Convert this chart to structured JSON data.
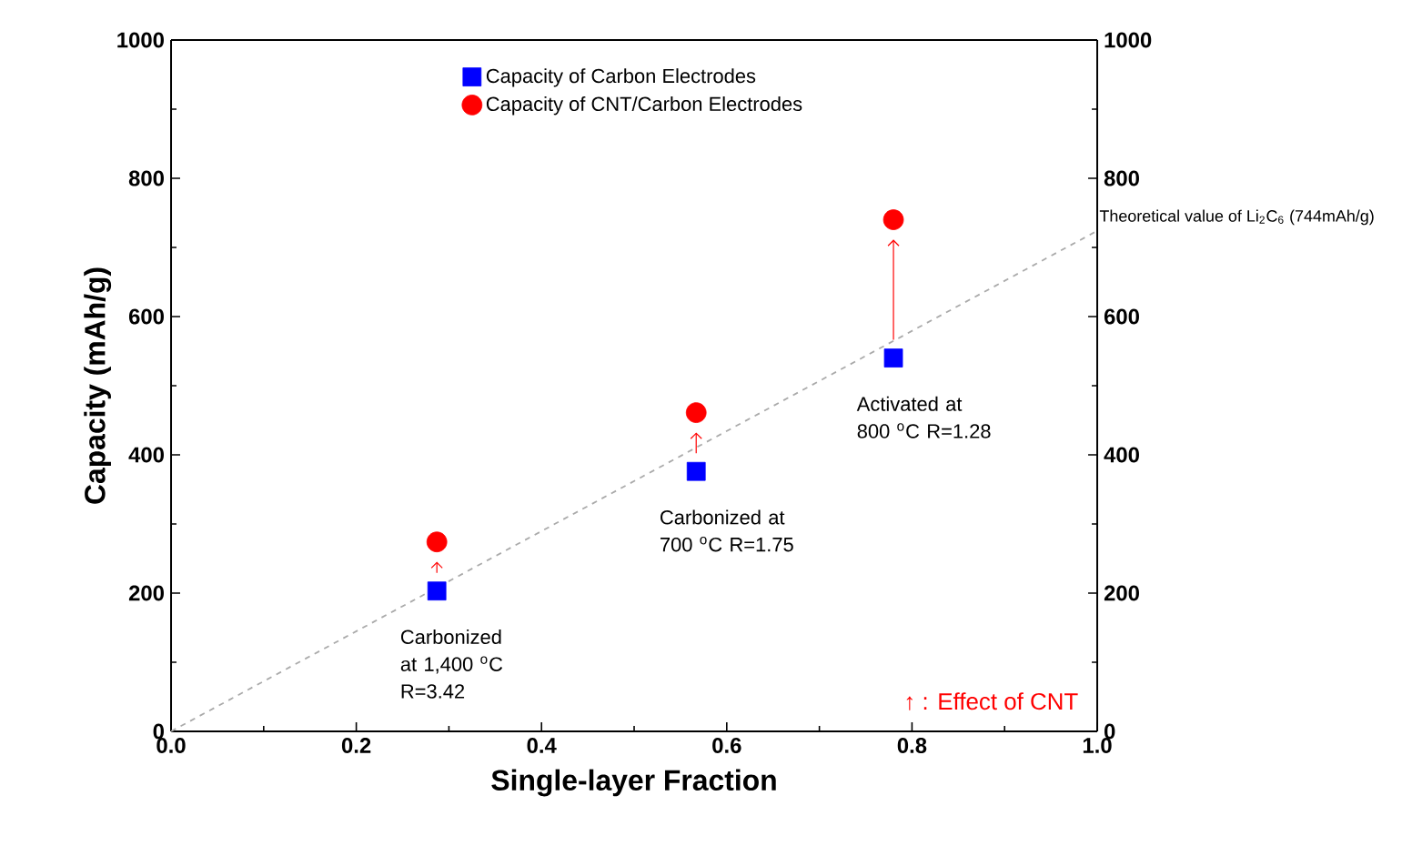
{
  "chart_data": {
    "type": "scatter",
    "xlabel": "Single-layer Fraction",
    "ylabel": "Capacity (mAh/g)",
    "xlim": [
      0,
      1.0
    ],
    "xticks": [
      {
        "value": 0,
        "label": "0.0"
      },
      0.2,
      0.4,
      0.6,
      0.8,
      {
        "value": 1.0,
        "label": "1.0"
      }
    ],
    "ylim": [
      0,
      1000
    ],
    "yticks": [
      0,
      200,
      400,
      600,
      800,
      1000
    ],
    "y2lim": [
      0,
      1000
    ],
    "y2ticks": [
      0,
      200,
      400,
      600,
      800,
      1000
    ],
    "legend": "top",
    "series": [
      {
        "name": "Capacity of Carbon Electrodes",
        "color": "#0000ff",
        "marker": "square",
        "x": [
          0.287,
          0.567,
          0.78
        ],
        "values": [
          203,
          376,
          540
        ]
      },
      {
        "name": "Capacity of CNT/Carbon Electrodes",
        "color": "#ff0000",
        "marker": "circle",
        "x": [
          0.287,
          0.567,
          0.78
        ],
        "values": [
          274,
          461,
          740
        ]
      },
      {
        "type": "line",
        "color": "#aaaaaa",
        "line_style": "dashed",
        "marker": "none",
        "x": [
          0,
          1.0
        ],
        "values": [
          0,
          724
        ]
      }
    ],
    "annotations": [
      "Carbonized at 1,400 $^{o}$C R=3.42",
      "Carbonized at 700 $^{o}$C R=1.75",
      "Activated at 800 $^{o}$C R=1.28",
      {
        "text": "Theoretical value of Li$_{2}$C$_{6}$ (744mAh/g)",
        "x": 1.0,
        "y": 724
      },
      "↑ : Effect of CNT"
    ]
  }
}
